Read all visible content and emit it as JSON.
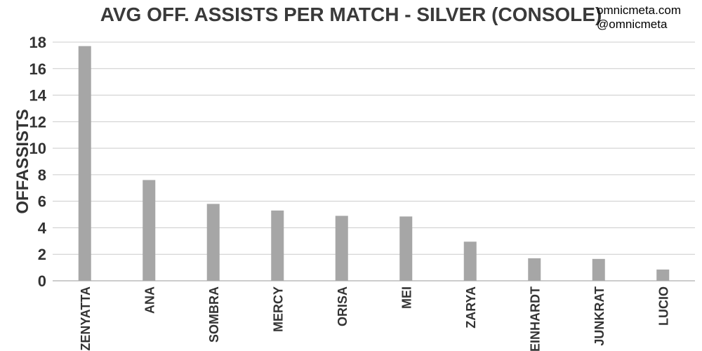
{
  "credits": [
    "omnicmeta.com",
    "@omnicmeta"
  ],
  "chart_data": {
    "type": "bar",
    "title": "AVG OFF. ASSISTS PER MATCH - SILVER (CONSOLE)",
    "xlabel": "",
    "ylabel": "OFFASSISTS",
    "categories": [
      "ZENYATTA",
      "ANA",
      "SOMBRA",
      "MERCY",
      "ORISA",
      "MEI",
      "ZARYA",
      "REINHARDT",
      "JUNKRAT",
      "LUCIO"
    ],
    "values": [
      17.7,
      7.6,
      5.8,
      5.3,
      4.9,
      4.85,
      2.95,
      1.7,
      1.65,
      0.85
    ],
    "ylim": [
      0,
      18
    ],
    "yticks": [
      0,
      2,
      4,
      6,
      8,
      10,
      12,
      14,
      16,
      18
    ],
    "grid": true,
    "legend": "none",
    "colors": {
      "bar": "#a6a6a6",
      "grid": "#cccccc",
      "axis": "#999999"
    }
  }
}
